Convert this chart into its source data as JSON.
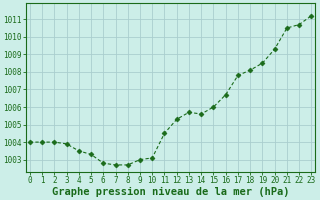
{
  "x": [
    0,
    1,
    2,
    3,
    4,
    5,
    6,
    7,
    8,
    9,
    10,
    11,
    12,
    13,
    14,
    15,
    16,
    17,
    18,
    19,
    20,
    21,
    22,
    23
  ],
  "y": [
    1004.0,
    1004.0,
    1004.0,
    1003.9,
    1003.5,
    1003.3,
    1002.8,
    1002.7,
    1002.7,
    1003.0,
    1003.1,
    1004.5,
    1005.3,
    1005.7,
    1005.6,
    1006.0,
    1006.7,
    1007.8,
    1008.1,
    1008.5,
    1009.3,
    1010.5,
    1010.7,
    1011.2
  ],
  "line_color": "#1a6b1a",
  "marker": "D",
  "marker_size": 2.5,
  "bg_color": "#cceee8",
  "grid_color": "#aacece",
  "xlabel": "Graphe pression niveau de la mer (hPa)",
  "xlabel_fontsize": 7.5,
  "ylabel_ticks": [
    1003,
    1004,
    1005,
    1006,
    1007,
    1008,
    1009,
    1010,
    1011
  ],
  "ylim": [
    1002.3,
    1011.9
  ],
  "xlim": [
    -0.3,
    23.3
  ],
  "xtick_labels": [
    "0",
    "1",
    "2",
    "3",
    "4",
    "5",
    "6",
    "7",
    "8",
    "9",
    "10",
    "11",
    "12",
    "13",
    "14",
    "15",
    "16",
    "17",
    "18",
    "19",
    "20",
    "21",
    "22",
    "23"
  ],
  "tick_fontsize": 5.5
}
